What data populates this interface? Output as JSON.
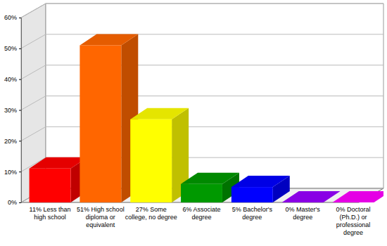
{
  "chart_data": {
    "type": "bar",
    "categories": [
      "11% Less than high school",
      "51% High school diploma or equivalent",
      "27% Some college, no degree",
      "6% Associate degree",
      "5% Bachelor's degree",
      "0% Master's degree",
      "0% Doctoral (Ph.D.) or professional degree"
    ],
    "values": [
      11,
      51,
      27,
      6,
      5,
      0,
      0
    ],
    "colors": [
      "#ff0000",
      "#ff6600",
      "#ffff00",
      "#009900",
      "#0000ff",
      "#9900ff",
      "#ff00ff"
    ],
    "ylim": [
      0,
      60
    ],
    "yticks": [
      {
        "value": 0,
        "label": "0%"
      },
      {
        "value": 10,
        "label": "10%"
      },
      {
        "value": 20,
        "label": "20%"
      },
      {
        "value": 30,
        "label": "30%"
      },
      {
        "value": 40,
        "label": "40%"
      },
      {
        "value": 50,
        "label": "50%"
      },
      {
        "value": 60,
        "label": "60%"
      }
    ],
    "grid": true
  }
}
